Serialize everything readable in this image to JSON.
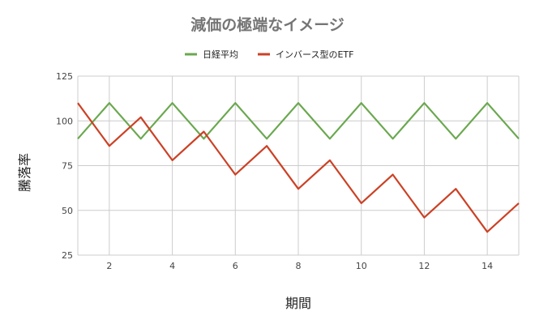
{
  "chart_data": {
    "type": "line",
    "title": "減価の極端なイメージ",
    "xlabel": "期間",
    "ylabel": "騰落率",
    "x": [
      1,
      2,
      3,
      4,
      5,
      6,
      7,
      8,
      9,
      10,
      11,
      12,
      13,
      14,
      15
    ],
    "xticks": [
      2,
      4,
      6,
      8,
      10,
      12,
      14
    ],
    "xlim": [
      1,
      15
    ],
    "ylim": [
      25,
      125
    ],
    "yticks": [
      25,
      50,
      75,
      100,
      125
    ],
    "grid": true,
    "legend": "top",
    "series": [
      {
        "name": "日経平均",
        "color": "#6aa84f",
        "values": [
          90,
          110,
          90,
          110,
          90,
          110,
          90,
          110,
          90,
          110,
          90,
          110,
          90,
          110,
          90
        ]
      },
      {
        "name": "インバース型のETF",
        "color": "#cc4125",
        "values": [
          110,
          86,
          102,
          78,
          94,
          70,
          86,
          62,
          78,
          54,
          70,
          46,
          62,
          38,
          54
        ]
      }
    ]
  }
}
